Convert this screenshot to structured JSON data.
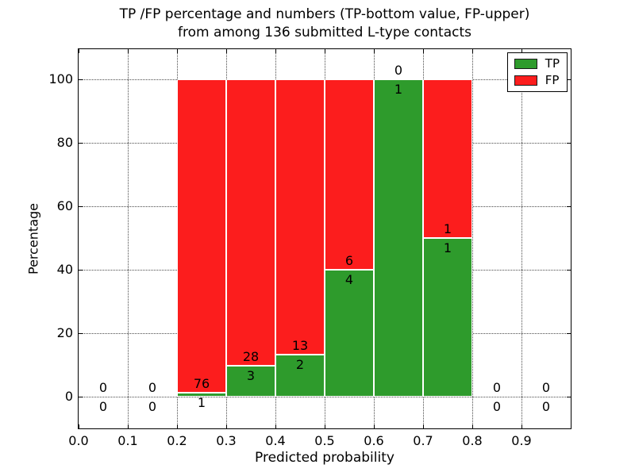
{
  "figure": {
    "title_line1": "TP /FP percentage and numbers (TP-bottom value, FP-upper)",
    "title_line2": "from among 136 submitted L-type contacts",
    "xlabel": "Predicted probability",
    "ylabel": "Percentage"
  },
  "legend": {
    "position": "upper right",
    "items": [
      {
        "label": "TP",
        "color": "#2e9b2c"
      },
      {
        "label": "FP",
        "color": "#fc1d1d"
      }
    ]
  },
  "chart_data": {
    "type": "bar",
    "stacked": true,
    "title": "TP /FP percentage and numbers (TP-bottom value, FP-upper) from among 136 submitted L-type contacts",
    "xlabel": "Predicted probability",
    "ylabel": "Percentage",
    "xlim": [
      0.0,
      1.0
    ],
    "ylim": [
      -10,
      110
    ],
    "xticks": [
      0.0,
      0.1,
      0.2,
      0.3,
      0.4,
      0.5,
      0.6,
      0.7,
      0.8,
      0.9
    ],
    "yticks": [
      0,
      20,
      40,
      60,
      80,
      100
    ],
    "grid": true,
    "grid_style": "dotted",
    "legend_position": "upper right",
    "series_colors": {
      "TP": "#2e9b2c",
      "FP": "#fc1d1d"
    },
    "bin_width": 0.1,
    "bins": [
      {
        "range": [
          0.0,
          0.1
        ],
        "tp_count": 0,
        "fp_count": 0,
        "tp_pct": 0,
        "fp_pct": 0
      },
      {
        "range": [
          0.1,
          0.2
        ],
        "tp_count": 0,
        "fp_count": 0,
        "tp_pct": 0,
        "fp_pct": 0
      },
      {
        "range": [
          0.2,
          0.3
        ],
        "tp_count": 1,
        "fp_count": 76,
        "tp_pct": 1.3,
        "fp_pct": 98.7
      },
      {
        "range": [
          0.3,
          0.4
        ],
        "tp_count": 3,
        "fp_count": 28,
        "tp_pct": 9.7,
        "fp_pct": 90.3
      },
      {
        "range": [
          0.4,
          0.5
        ],
        "tp_count": 2,
        "fp_count": 13,
        "tp_pct": 13.3,
        "fp_pct": 86.7
      },
      {
        "range": [
          0.5,
          0.6
        ],
        "tp_count": 4,
        "fp_count": 6,
        "tp_pct": 40,
        "fp_pct": 60
      },
      {
        "range": [
          0.6,
          0.7
        ],
        "tp_count": 1,
        "fp_count": 0,
        "tp_pct": 100,
        "fp_pct": 0
      },
      {
        "range": [
          0.7,
          0.8
        ],
        "tp_count": 1,
        "fp_count": 1,
        "tp_pct": 50,
        "fp_pct": 50
      },
      {
        "range": [
          0.8,
          0.9
        ],
        "tp_count": 0,
        "fp_count": 0,
        "tp_pct": 0,
        "fp_pct": 0
      },
      {
        "range": [
          0.9,
          1.0
        ],
        "tp_count": 0,
        "fp_count": 0,
        "tp_pct": 0,
        "fp_pct": 0
      }
    ]
  }
}
